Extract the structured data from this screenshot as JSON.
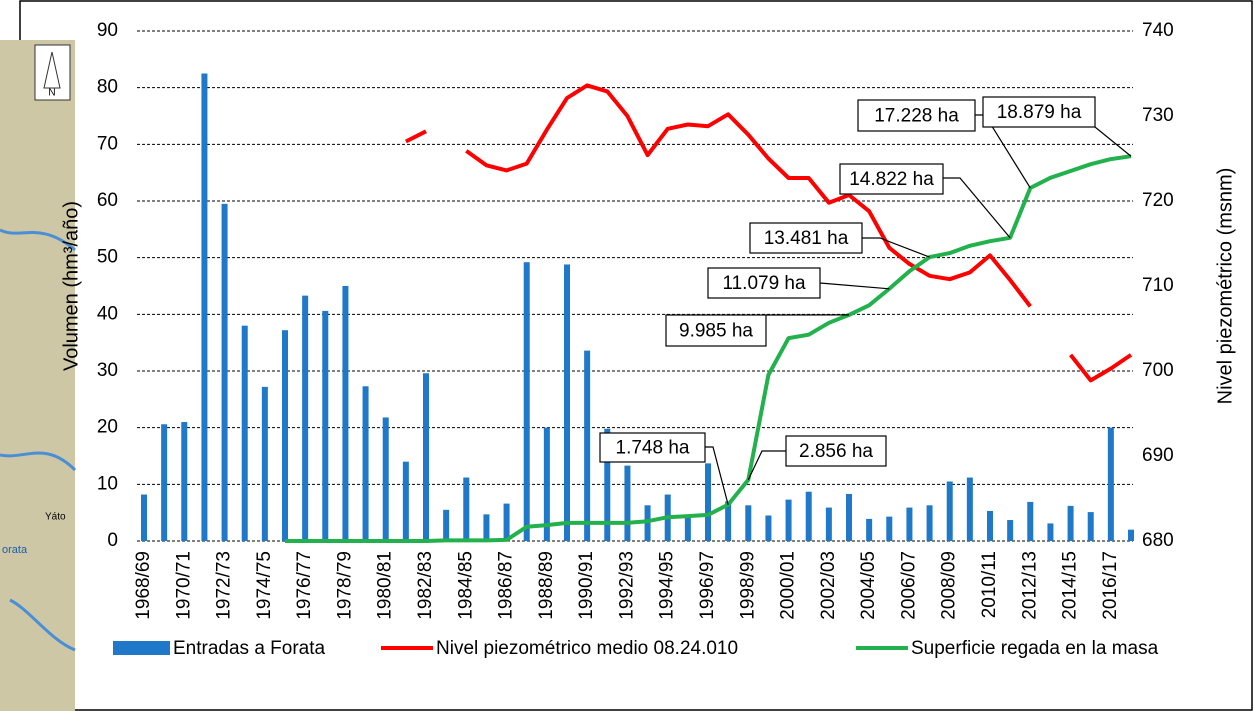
{
  "chart_data": {
    "type": "bar-line",
    "categories": [
      "1968/69",
      null,
      "1970/71",
      null,
      "1972/73",
      null,
      "1974/75",
      null,
      "1976/77",
      null,
      "1978/79",
      null,
      "1980/81",
      null,
      "1982/83",
      null,
      "1984/85",
      null,
      "1986/87",
      null,
      "1988/89",
      null,
      "1990/91",
      null,
      "1992/93",
      null,
      "1994/95",
      null,
      "1996/97",
      null,
      "1998/99",
      null,
      "2000/01",
      null,
      "2002/03",
      null,
      "2004/05",
      null,
      "2006/07",
      null,
      "2008/09",
      null,
      "2010/11",
      null,
      "2012/13",
      null,
      "2014/15",
      null,
      "2016/17",
      null
    ],
    "y_label": "Volumen (hm³/año)",
    "y2_label": "Nivel piezométrico (msnm)",
    "ylim": [
      0,
      90
    ],
    "yticks": [
      0,
      10,
      20,
      30,
      40,
      50,
      60,
      70,
      80,
      90
    ],
    "y2lim": [
      680,
      740
    ],
    "y2ticks": [
      680,
      690,
      700,
      710,
      720,
      730,
      740
    ],
    "grid": true,
    "series": [
      {
        "name": "Entradas a Forata",
        "type": "bar",
        "color": "#1f78c8",
        "values": [
          8.2,
          20.6,
          21,
          82.5,
          59.5,
          38,
          27.2,
          37.2,
          43.3,
          40.6,
          45,
          27.3,
          21.8,
          14,
          29.6,
          5.5,
          11.2,
          4.7,
          6.6,
          49.2,
          20,
          48.8,
          33.6,
          19.8,
          13.3,
          6.3,
          8.2,
          4.5,
          13.7,
          7,
          6.3,
          4.5,
          7.3,
          8.7,
          5.9,
          8.3,
          3.9,
          4.3,
          5.9,
          6.3,
          10.5,
          11.2,
          5.3,
          3.7,
          6.9,
          3.1,
          6.2,
          5.1,
          20,
          2
        ]
      },
      {
        "name": "Nivel piezométrico medio 08.24.010",
        "type": "line",
        "axis": "y2",
        "color": "#ff0000",
        "values": [
          null,
          null,
          null,
          null,
          null,
          null,
          null,
          null,
          null,
          null,
          null,
          null,
          null,
          727.0,
          728.2,
          null,
          725.9,
          724.2,
          723.6,
          724.4,
          728.4,
          732.1,
          733.6,
          732.9,
          730,
          725.4,
          728.5,
          729,
          728.8,
          730.2,
          727.8,
          725,
          722.7,
          722.7,
          719.8,
          720.7,
          718.8,
          714.5,
          712.6,
          711.2,
          710.8,
          711.6,
          713.6,
          710.7,
          707.6,
          null,
          701.9,
          698.9,
          700.3,
          701.9
        ]
      },
      {
        "name": "Superficie regada en la masa",
        "type": "line",
        "color": "#22b14c",
        "values": [
          null,
          null,
          null,
          null,
          null,
          null,
          null,
          0,
          0,
          0,
          0,
          0,
          0,
          0,
          0,
          0.1,
          0.1,
          0.1,
          0.2,
          2.5,
          2.8,
          3.2,
          3.2,
          3.2,
          3.2,
          3.5,
          4.2,
          4.4,
          4.6,
          6.4,
          10.8,
          29.3,
          35.8,
          36.4,
          38.5,
          39.9,
          41.6,
          44.5,
          47.6,
          50.1,
          50.8,
          52.1,
          52.9,
          53.5,
          62.3,
          64.1,
          65.3,
          66.5,
          67.4,
          67.9
        ]
      }
    ],
    "annotations": [
      "1.748 ha",
      "2.856 ha",
      "9.985 ha",
      "11.079 ha",
      "13.481 ha",
      "14.822 ha",
      "17.228 ha",
      "18.879 ha"
    ]
  },
  "map_labels": [
    "N",
    "Yáto",
    "orata"
  ]
}
